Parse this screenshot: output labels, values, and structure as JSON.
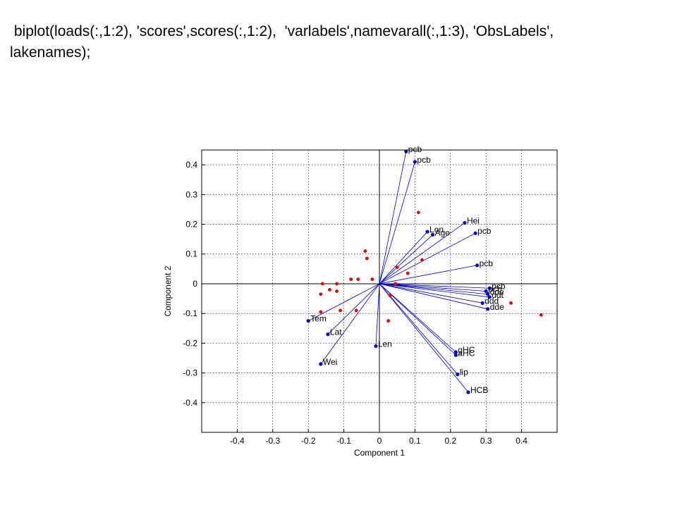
{
  "slide": {
    "caption": " biplot(loads(:,1:2), 'scores',scores(:,1:2),  'varlabels',namevarall(:,1:3), 'ObsLabels', lakenames);"
  },
  "colors": {
    "vector": "#0000cc",
    "observation": "#dd0000",
    "axes": "#000000",
    "grid": "#000000"
  },
  "chart_data": {
    "type": "scatter",
    "subtype": "biplot",
    "title": "",
    "xlabel": "Component 1",
    "ylabel": "Component 2",
    "xlim": [
      -0.5,
      0.5
    ],
    "ylim": [
      -0.5,
      0.45
    ],
    "xticks": [
      -0.4,
      -0.3,
      -0.2,
      -0.1,
      0,
      0.1,
      0.2,
      0.3,
      0.4
    ],
    "xtick_labels": [
      "-0.4",
      "-0.3",
      "-0.2",
      "-0.1",
      "0",
      "0.1",
      "0.2",
      "0.3",
      "0.4"
    ],
    "yticks": [
      0.4,
      0.3,
      0.2,
      0.1,
      0,
      -0.1,
      -0.2,
      -0.3,
      -0.4
    ],
    "ytick_labels": [
      "0.4",
      "0.3",
      "0.2",
      "0.1",
      "0",
      "-0.1",
      "-0.2",
      "-0.3",
      "-0.4"
    ],
    "grid": true,
    "grid_style": "dotted",
    "reference_lines": [
      "x=0",
      "y=0"
    ],
    "vectors": [
      {
        "label": "pcb",
        "x": 0.075,
        "y": 0.445
      },
      {
        "label": "pcb",
        "x": 0.1,
        "y": 0.41
      },
      {
        "label": "Hei",
        "x": 0.24,
        "y": 0.205
      },
      {
        "label": "Lon",
        "x": 0.135,
        "y": 0.175
      },
      {
        "label": "Age",
        "x": 0.15,
        "y": 0.165
      },
      {
        "label": "pcb",
        "x": 0.27,
        "y": 0.17
      },
      {
        "label": "pcb",
        "x": 0.275,
        "y": 0.062
      },
      {
        "label": "pcb",
        "x": 0.31,
        "y": -0.015
      },
      {
        "label": "pcb",
        "x": 0.3,
        "y": -0.025
      },
      {
        "label": "dde",
        "x": 0.305,
        "y": -0.035
      },
      {
        "label": "ddt",
        "x": 0.31,
        "y": -0.045
      },
      {
        "label": "ddd",
        "x": 0.29,
        "y": -0.065
      },
      {
        "label": "dde",
        "x": 0.305,
        "y": -0.085
      },
      {
        "label": "gHC",
        "x": 0.215,
        "y": -0.23
      },
      {
        "label": "aHC",
        "x": 0.215,
        "y": -0.24
      },
      {
        "label": "lip",
        "x": 0.22,
        "y": -0.305
      },
      {
        "label": "HCB",
        "x": 0.25,
        "y": -0.365
      },
      {
        "label": "Len",
        "x": -0.01,
        "y": -0.21
      },
      {
        "label": "Tem",
        "x": -0.2,
        "y": -0.125
      },
      {
        "label": "Lat",
        "x": -0.145,
        "y": -0.17
      },
      {
        "label": "Wei",
        "x": -0.165,
        "y": -0.27
      }
    ],
    "observations": {
      "x": [
        0.11,
        0.12,
        0.08,
        0.05,
        -0.04,
        -0.035,
        -0.02,
        -0.06,
        -0.08,
        -0.12,
        -0.16,
        -0.165,
        -0.14,
        -0.12,
        -0.11,
        -0.065,
        0.045,
        0.03,
        0.025,
        -0.165,
        0.37,
        0.455
      ],
      "y": [
        0.24,
        0.08,
        0.035,
        0.055,
        0.11,
        0.085,
        0.015,
        0.015,
        0.015,
        0.0,
        0.0,
        -0.035,
        -0.02,
        -0.025,
        -0.09,
        -0.09,
        0.0,
        -0.04,
        -0.125,
        -0.095,
        -0.065,
        -0.105
      ]
    }
  }
}
